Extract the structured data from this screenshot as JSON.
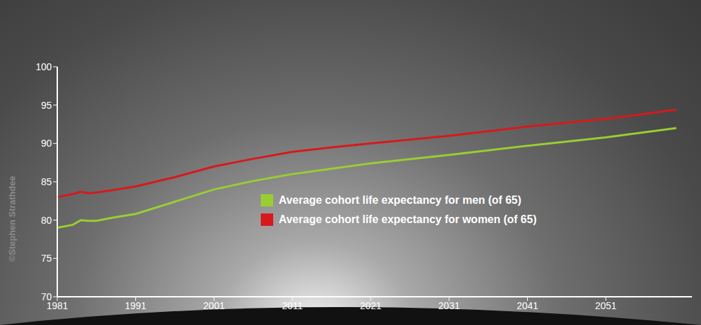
{
  "chart_data": {
    "type": "line",
    "annotation": "©Stephen Strathdee",
    "x": [
      1981,
      1983,
      1984,
      1985,
      1986,
      1988,
      1991,
      1996,
      2001,
      2006,
      2011,
      2016,
      2021,
      2031,
      2041,
      2051,
      2060
    ],
    "series": [
      {
        "name": "Average cohort life expectancy for men (of 65)",
        "color": "#9acd32",
        "values": [
          79.0,
          79.4,
          80.0,
          79.9,
          79.9,
          80.3,
          80.8,
          82.4,
          84.0,
          85.1,
          86.0,
          86.7,
          87.4,
          88.5,
          89.7,
          90.8,
          92.0
        ]
      },
      {
        "name": "Average cohort life expectancy for women (of 65)",
        "color": "#d7191c",
        "values": [
          83.0,
          83.4,
          83.7,
          83.5,
          83.6,
          83.9,
          84.4,
          85.6,
          87.0,
          88.0,
          88.9,
          89.5,
          90.0,
          91.0,
          92.2,
          93.2,
          94.4
        ]
      }
    ],
    "xlim": [
      1981,
      2062
    ],
    "xticks": [
      1981,
      1991,
      2001,
      2011,
      2021,
      2031,
      2041,
      2051
    ],
    "ylim": [
      70,
      100
    ],
    "yticks": [
      70,
      75,
      80,
      85,
      90,
      95,
      100
    ],
    "grid": false,
    "legend": "center"
  }
}
